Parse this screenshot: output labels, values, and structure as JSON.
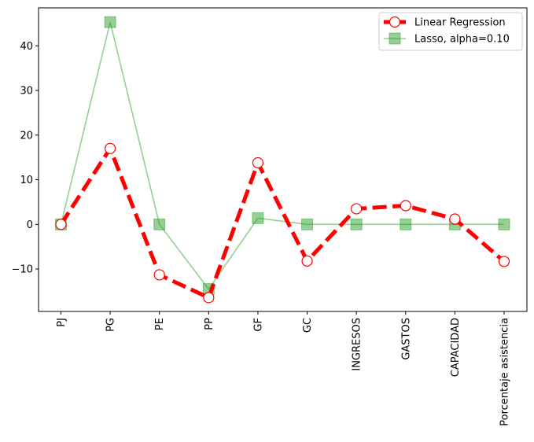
{
  "chart_data": {
    "type": "line",
    "title": "",
    "xlabel": "",
    "ylabel": "",
    "categories": [
      "PJ",
      "PG",
      "PE",
      "PP",
      "GF",
      "GC",
      "INGRESOS",
      "GASTOS",
      "CAPACIDAD",
      "Porcentaje asistencia"
    ],
    "ylim": [
      -19.5,
      48.5
    ],
    "yticks": [
      -10,
      0,
      10,
      20,
      30,
      40
    ],
    "ytick_labels": [
      "−10",
      "0",
      "10",
      "20",
      "30",
      "40"
    ],
    "legend_position": "top-right",
    "grid": false,
    "series": [
      {
        "name": "Linear Regression",
        "color": "#ff0000",
        "line_style": "dashed",
        "marker": "circle-open",
        "values": [
          0.0,
          17.0,
          -11.3,
          -16.4,
          13.8,
          -8.2,
          3.5,
          4.2,
          1.2,
          -8.3
        ]
      },
      {
        "name": "Lasso, alpha=0.10",
        "color": "#2ca02c",
        "line_style": "solid",
        "marker": "square",
        "values": [
          0.0,
          45.3,
          0.0,
          -14.5,
          1.4,
          0.0,
          0.0,
          0.0,
          0.0,
          0.0
        ]
      }
    ]
  }
}
